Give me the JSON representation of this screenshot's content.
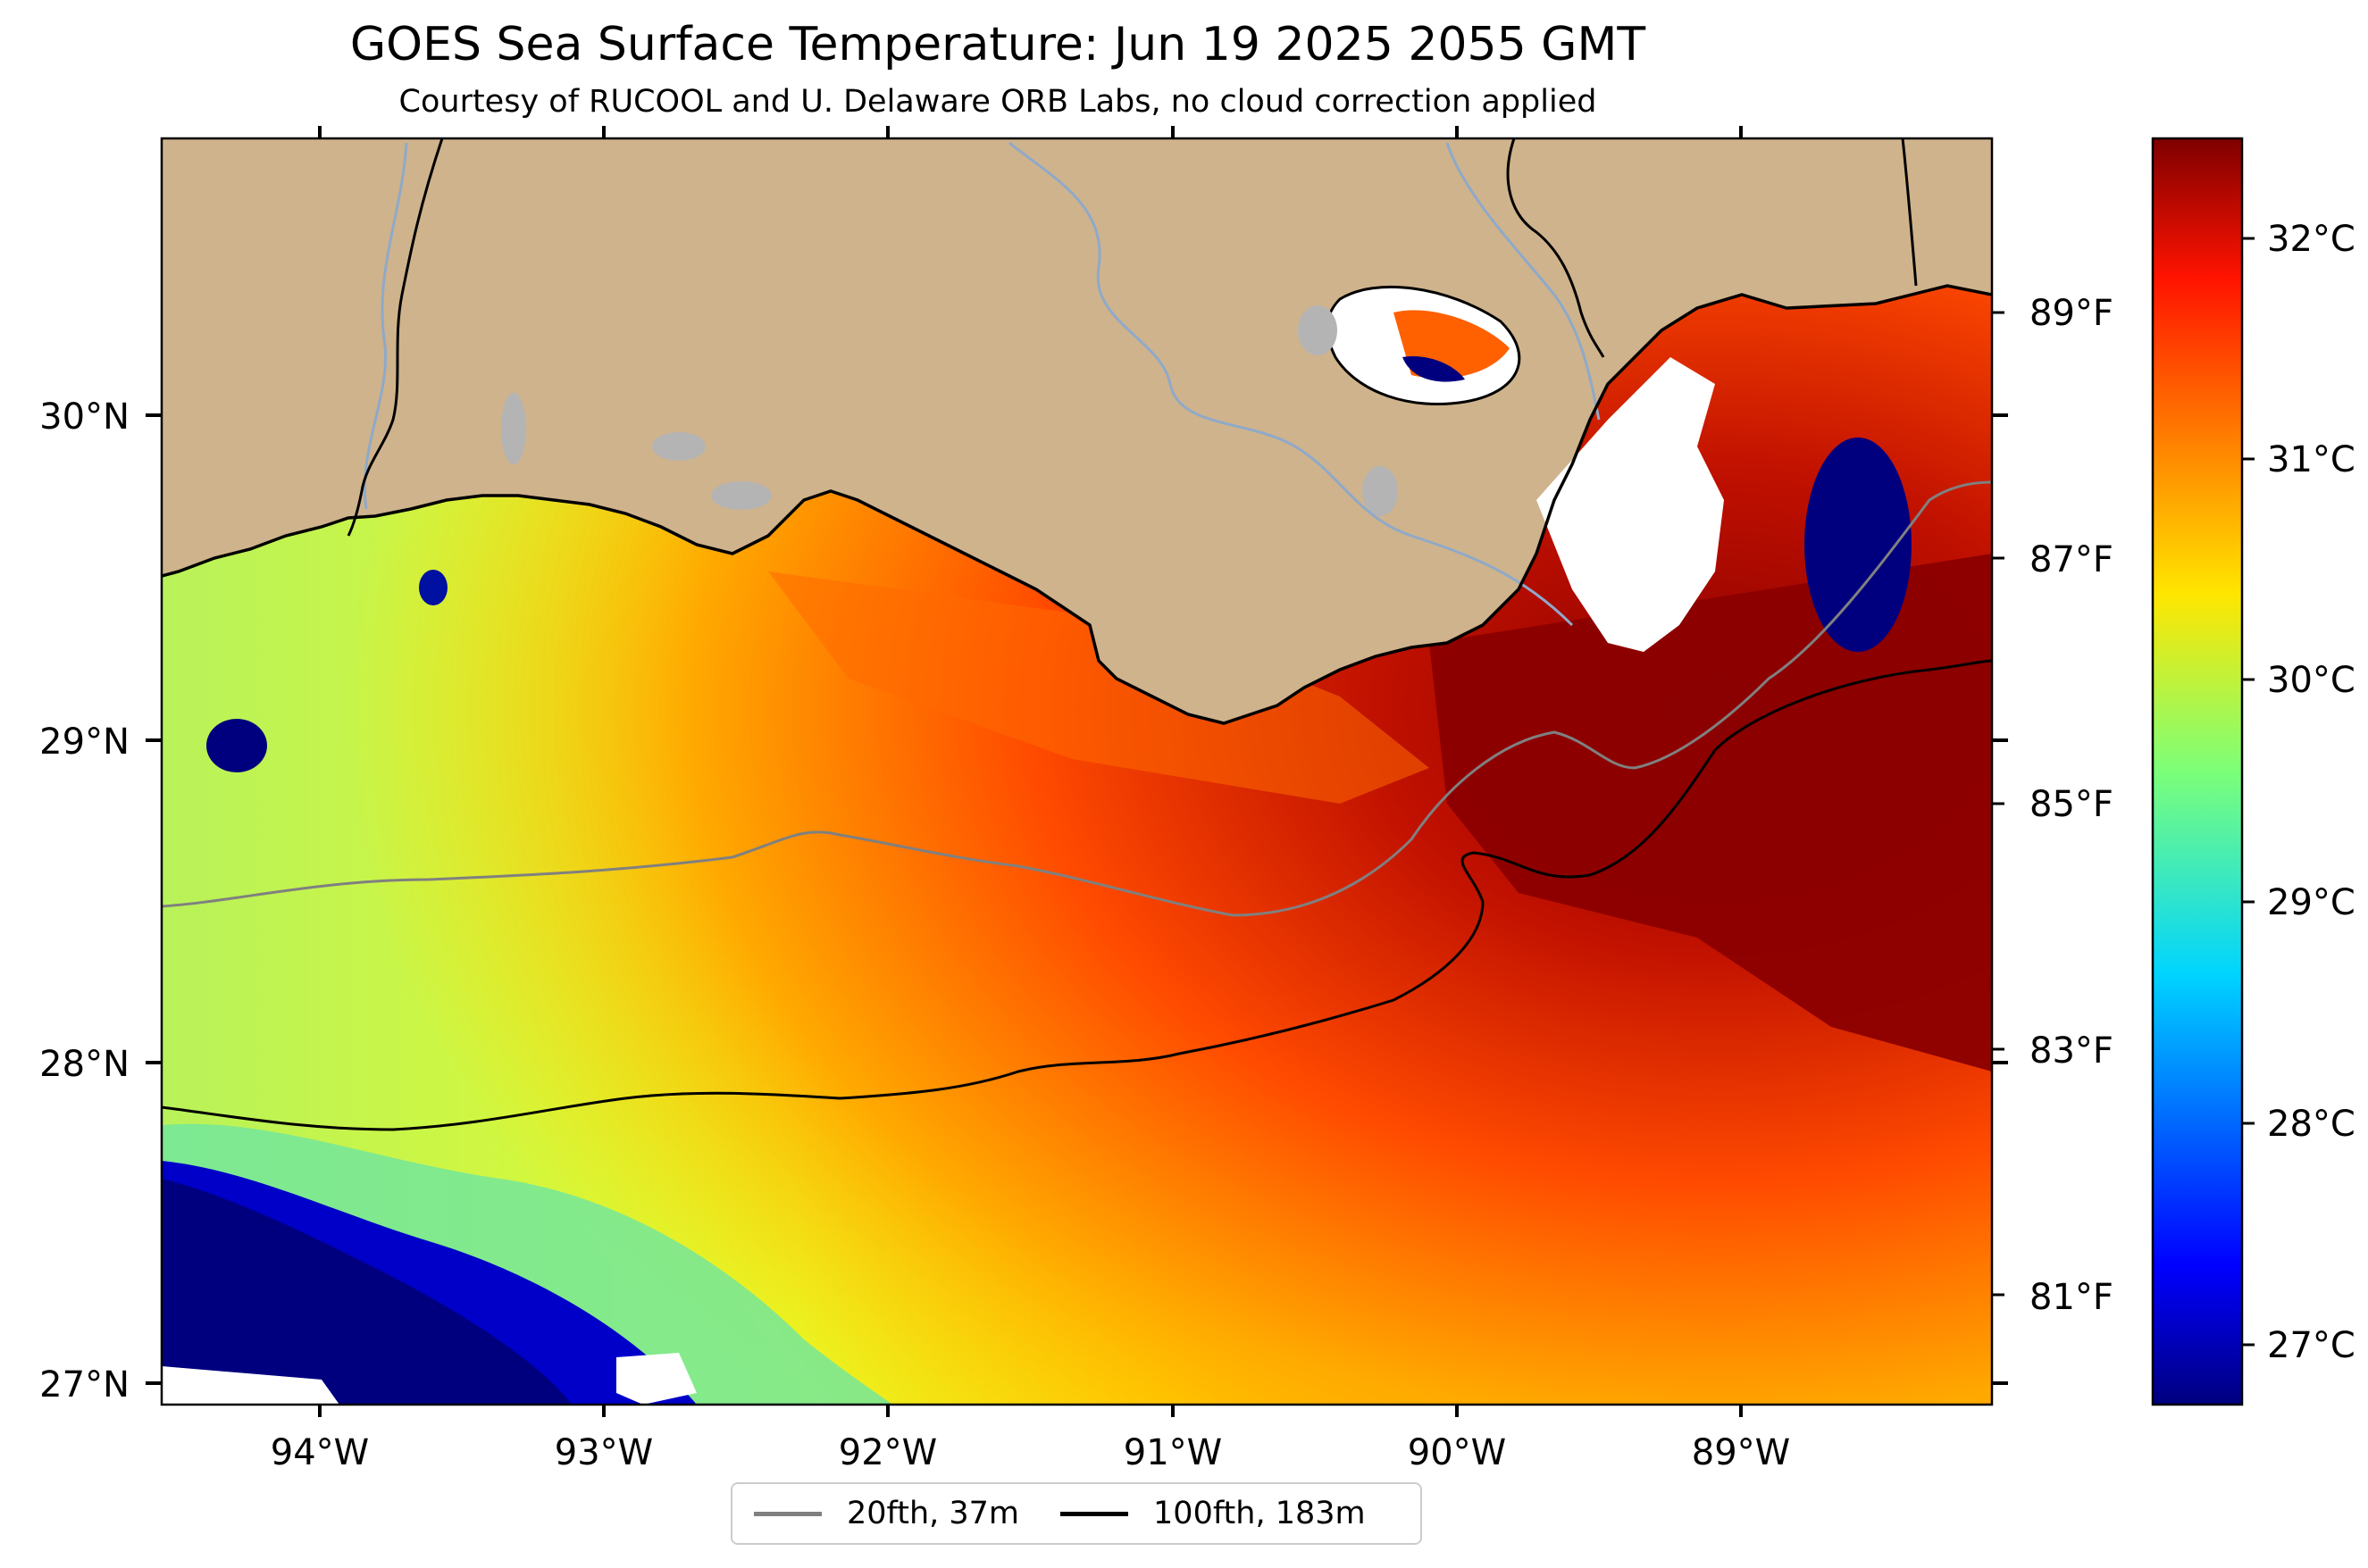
{
  "title": "GOES Sea Surface Temperature: Jun 19 2025 2055 GMT",
  "subtitle": "Courtesy of RUCOOL and U. Delaware ORB Labs, no cloud correction applied",
  "map": {
    "lon_labels": [
      "94°W",
      "93°W",
      "92°W",
      "91°W",
      "90°W",
      "89°W"
    ],
    "lat_labels": [
      "30°N",
      "29°N",
      "28°N",
      "27°N"
    ],
    "colors": {
      "land": "#cfb38c",
      "cloud": "#ffffff",
      "lake": "#b4b4b4",
      "river": "#8fa9c9",
      "coast": "#000000"
    }
  },
  "colorbar": {
    "celsius_labels": [
      "32°C",
      "31°C",
      "30°C",
      "29°C",
      "28°C",
      "27°C"
    ],
    "fahrenheit_labels": [
      "89°F",
      "87°F",
      "85°F",
      "83°F",
      "81°F"
    ],
    "colormap": "jet"
  },
  "legend": {
    "items": [
      {
        "label": "20fth, 37m",
        "color": "#808080"
      },
      {
        "label": "100fth, 183m",
        "color": "#000000"
      }
    ]
  }
}
